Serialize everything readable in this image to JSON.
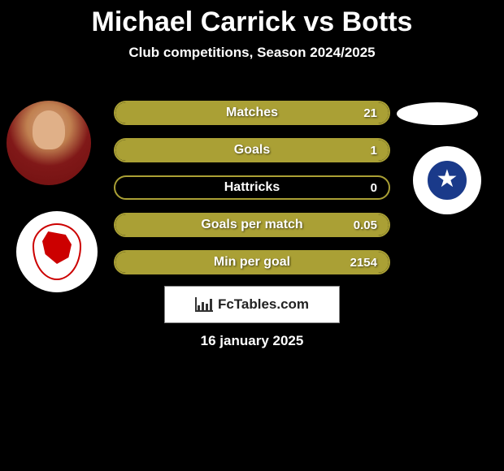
{
  "title": "Michael Carrick vs Botts",
  "subtitle": "Club competitions, Season 2024/2025",
  "date": "16 january 2025",
  "site_logo_text": "FcTables.com",
  "colors": {
    "background": "#000000",
    "bar_fill": "#aaa035",
    "bar_border": "#aaa035",
    "text": "#ffffff",
    "badge2_blue": "#1a3a8a",
    "badge1_red": "#c00000"
  },
  "stats": [
    {
      "label": "Matches",
      "value": "21",
      "fill_pct": 100
    },
    {
      "label": "Goals",
      "value": "1",
      "fill_pct": 100
    },
    {
      "label": "Hattricks",
      "value": "0",
      "fill_pct": 0
    },
    {
      "label": "Goals per match",
      "value": "0.05",
      "fill_pct": 100
    },
    {
      "label": "Min per goal",
      "value": "2154",
      "fill_pct": 100
    }
  ]
}
